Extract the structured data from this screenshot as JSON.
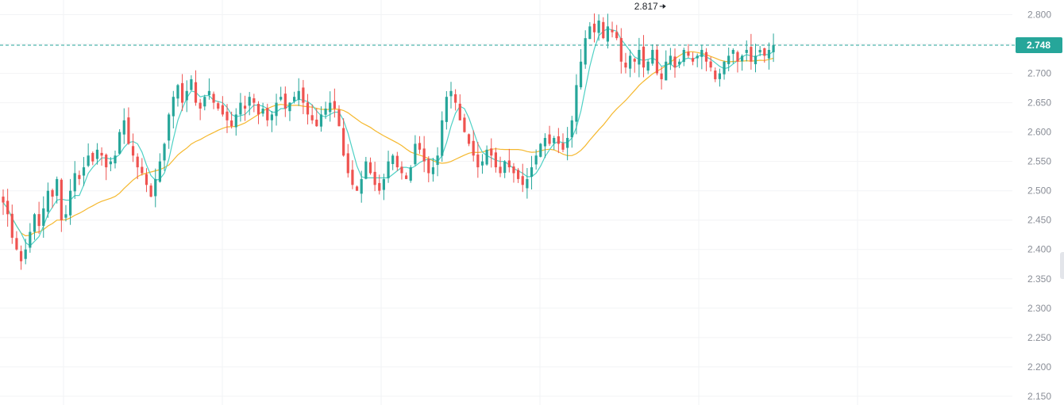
{
  "chart_data": {
    "type": "candlestick",
    "y_axis_side": "right",
    "ylim": [
      2.135,
      2.825
    ],
    "y_ticks": [
      "2.800",
      "2.750",
      "2.700",
      "2.650",
      "2.600",
      "2.550",
      "2.500",
      "2.450",
      "2.400",
      "2.350",
      "2.300",
      "2.250",
      "2.200",
      "2.150"
    ],
    "current_price": "2.748",
    "current_price_value": 2.748,
    "peak_label": "2.817",
    "peak_value": 2.817,
    "peak_index": 148,
    "grid": "vertical-and-horizontal-light",
    "colors": {
      "up": "#26a69a",
      "down": "#ef5350",
      "ma_fast": "#4fd1c5",
      "ma_slow": "#f5b82e",
      "price_tag": "#26a69a",
      "grid": "#f2f3f5",
      "axis_text": "#8a8e97"
    },
    "closes": [
      2.48,
      2.46,
      2.42,
      2.4,
      2.38,
      2.4,
      2.43,
      2.46,
      2.44,
      2.47,
      2.5,
      2.49,
      2.52,
      2.45,
      2.46,
      2.5,
      2.53,
      2.52,
      2.54,
      2.56,
      2.55,
      2.57,
      2.56,
      2.54,
      2.55,
      2.56,
      2.6,
      2.62,
      2.58,
      2.56,
      2.54,
      2.53,
      2.51,
      2.49,
      2.52,
      2.55,
      2.58,
      2.63,
      2.66,
      2.68,
      2.65,
      2.67,
      2.69,
      2.65,
      2.64,
      2.66,
      2.67,
      2.65,
      2.64,
      2.63,
      2.62,
      2.61,
      2.63,
      2.65,
      2.64,
      2.66,
      2.65,
      2.63,
      2.64,
      2.62,
      2.63,
      2.65,
      2.66,
      2.64,
      2.65,
      2.66,
      2.67,
      2.65,
      2.63,
      2.62,
      2.61,
      2.63,
      2.64,
      2.65,
      2.64,
      2.61,
      2.56,
      2.53,
      2.51,
      2.5,
      2.52,
      2.55,
      2.53,
      2.51,
      2.5,
      2.52,
      2.55,
      2.56,
      2.54,
      2.53,
      2.52,
      2.54,
      2.58,
      2.57,
      2.55,
      2.53,
      2.54,
      2.56,
      2.62,
      2.66,
      2.67,
      2.65,
      2.62,
      2.6,
      2.58,
      2.56,
      2.54,
      2.55,
      2.57,
      2.56,
      2.54,
      2.53,
      2.55,
      2.54,
      2.53,
      2.52,
      2.51,
      2.52,
      2.54,
      2.56,
      2.58,
      2.59,
      2.58,
      2.59,
      2.58,
      2.57,
      2.59,
      2.62,
      2.68,
      2.72,
      2.76,
      2.78,
      2.77,
      2.79,
      2.76,
      2.78,
      2.77,
      2.76,
      2.72,
      2.71,
      2.73,
      2.72,
      2.74,
      2.71,
      2.72,
      2.74,
      2.7,
      2.69,
      2.72,
      2.73,
      2.71,
      2.72,
      2.74,
      2.73,
      2.72,
      2.73,
      2.74,
      2.72,
      2.71,
      2.69,
      2.7,
      2.72,
      2.73,
      2.74,
      2.72,
      2.73,
      2.74,
      2.72,
      2.73,
      2.74,
      2.73,
      2.74,
      2.748
    ],
    "ma_fast_period": 5,
    "ma_slow_period": 25
  }
}
